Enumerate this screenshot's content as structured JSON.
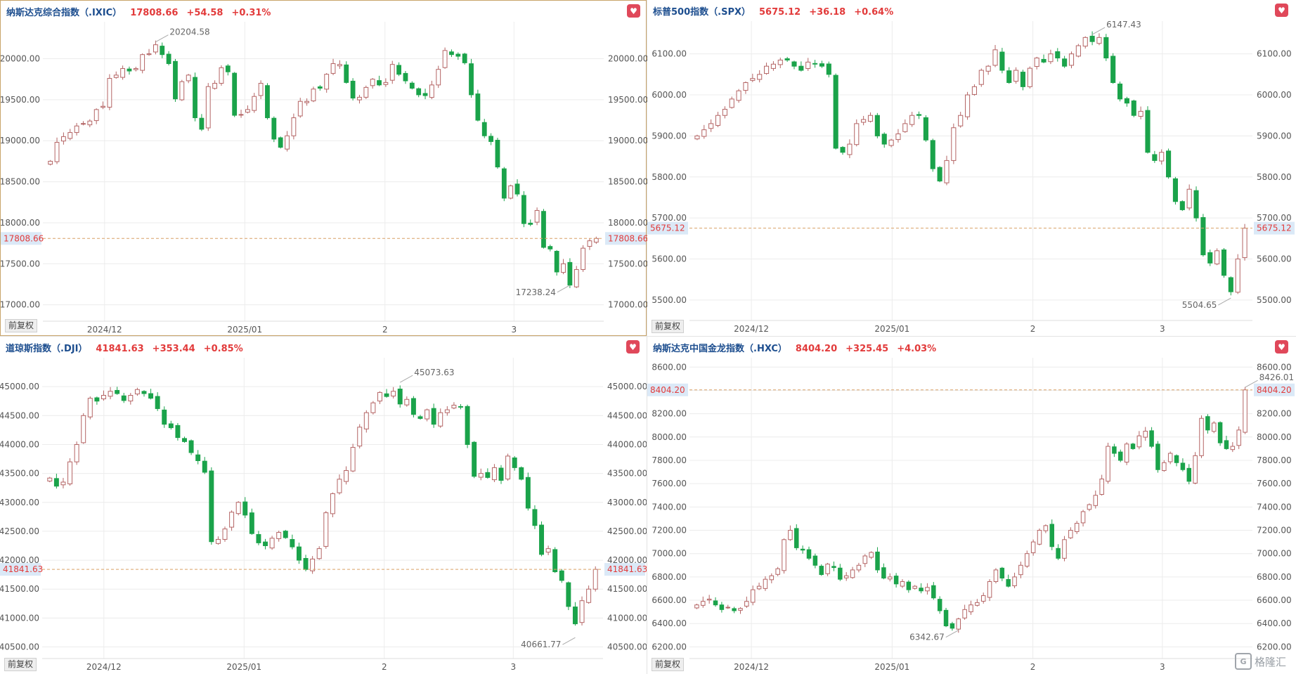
{
  "panels": [
    {
      "id": "ixic",
      "name": "纳斯达克综合指数（.IXIC）",
      "price": "17808.66",
      "change": "+54.58",
      "pct": "+0.31%",
      "left_axis": [
        "20000.00",
        "19500.00",
        "19000.00",
        "18500.00",
        "18000.00",
        "17500.00",
        "17000.00"
      ],
      "right_axis": [
        "20000.00",
        "19500.00",
        "19000.00",
        "18500.00",
        "18000.00",
        "17500.00",
        "17000.00"
      ],
      "x_labels": [
        "2024/12",
        "2025/01",
        "2",
        "3"
      ],
      "high_label": "20204.58",
      "low_label": "17238.24",
      "adj_label": "前复权"
    },
    {
      "id": "spx",
      "name": "标普500指数（.SPX）",
      "price": "5675.12",
      "change": "+36.18",
      "pct": "+0.64%",
      "left_axis": [
        "6100.00",
        "6000.00",
        "5900.00",
        "5800.00",
        "5700.00",
        "5600.00",
        "5500.00"
      ],
      "right_axis": [
        "6100.00",
        "6000.00",
        "5900.00",
        "5800.00",
        "5700.00",
        "5600.00",
        "5500.00"
      ],
      "x_labels": [
        "2024/12",
        "2025/01",
        "2",
        "3"
      ],
      "high_label": "6147.43",
      "low_label": "5504.65",
      "adj_label": "前复权"
    },
    {
      "id": "dji",
      "name": "道琼斯指数（.DJI）",
      "price": "41841.63",
      "change": "+353.44",
      "pct": "+0.85%",
      "left_axis": [
        "45000.00",
        "44500.00",
        "44000.00",
        "43500.00",
        "43000.00",
        "42500.00",
        "42000.00",
        "41500.00",
        "41000.00",
        "40500.00"
      ],
      "right_axis": [
        "45000.00",
        "44500.00",
        "44000.00",
        "43500.00",
        "43000.00",
        "42500.00",
        "42000.00",
        "41500.00",
        "41000.00",
        "40500.00"
      ],
      "x_labels": [
        "2024/12",
        "2025/01",
        "2",
        "3"
      ],
      "high_label": "45073.63",
      "low_label": "40661.77",
      "adj_label": "前复权"
    },
    {
      "id": "hxc",
      "name": "纳斯达克中国金龙指数（.HXC）",
      "price": "8404.20",
      "change": "+325.45",
      "pct": "+4.03%",
      "left_axis": [
        "8600.00",
        "8400.00",
        "8200.00",
        "8000.00",
        "7800.00",
        "7600.00",
        "7400.00",
        "7200.00",
        "7000.00",
        "6800.00",
        "6600.00",
        "6400.00",
        "6200.00"
      ],
      "right_axis": [
        "8600.00",
        "8400.00",
        "8200.00",
        "8000.00",
        "7800.00",
        "7600.00",
        "7400.00",
        "7200.00",
        "7000.00",
        "6800.00",
        "6600.00",
        "6400.00",
        "6200.00"
      ],
      "x_labels": [
        "2024/12",
        "2025/01",
        "2",
        "3"
      ],
      "high_label": "8426.01",
      "low_label": "6342.67",
      "adj_label": "前复权"
    }
  ],
  "brand": {
    "logo_text": "格隆汇",
    "logo_mark": "G"
  },
  "colors": {
    "up": "#b46464",
    "down": "#1aa34a",
    "accent": "#e23b3b",
    "title": "#1d4e8f",
    "price_line": "#d9a066"
  },
  "chart_data": [
    {
      "type": "candlestick",
      "title": "纳斯达克综合指数（.IXIC）",
      "x": [
        "2024/12",
        "2025/01",
        "2",
        "3"
      ],
      "ylim": [
        16800,
        20450
      ],
      "last": 17808.66,
      "high": 20204.58,
      "low": 17238.24,
      "closes": [
        18750,
        18980,
        19050,
        19100,
        19180,
        19210,
        19240,
        19380,
        19420,
        19760,
        19800,
        19880,
        19850,
        19880,
        20050,
        20060,
        20170,
        20050,
        19940,
        19510,
        19720,
        19800,
        19280,
        19140,
        19660,
        19700,
        19890,
        19840,
        19310,
        19320,
        19380,
        19540,
        19700,
        19280,
        19020,
        18920,
        19060,
        19280,
        19480,
        19480,
        19630,
        19640,
        19810,
        19940,
        19930,
        19710,
        19520,
        19530,
        19650,
        19750,
        19680,
        19710,
        19930,
        19810,
        19730,
        19640,
        19560,
        19550,
        19680,
        19870,
        20100,
        20050,
        20030,
        19950,
        19560,
        19250,
        19060,
        18990,
        18680,
        18300,
        18450,
        18350,
        17990,
        17980,
        18150,
        17700,
        17680,
        17400,
        17500,
        17240,
        17430,
        17690,
        17780,
        17808.66
      ]
    },
    {
      "type": "candlestick",
      "title": "标普500指数（.SPX）",
      "x": [
        "2024/12",
        "2025/01",
        "2",
        "3"
      ],
      "ylim": [
        5450,
        6180
      ],
      "last": 5675.12,
      "high": 6147.43,
      "low": 5504.65,
      "closes": [
        5900,
        5915,
        5930,
        5950,
        5965,
        5990,
        6010,
        6030,
        6040,
        6050,
        6070,
        6075,
        6085,
        6085,
        6070,
        6060,
        6080,
        6075,
        6070,
        6050,
        5870,
        5860,
        5880,
        5930,
        5940,
        5950,
        5900,
        5880,
        5890,
        5905,
        5930,
        5950,
        5950,
        5890,
        5820,
        5790,
        5840,
        5920,
        5950,
        6000,
        6020,
        6060,
        6070,
        6110,
        6060,
        6030,
        6060,
        6020,
        6065,
        6090,
        6080,
        6100,
        6090,
        6070,
        6100,
        6120,
        6140,
        6130,
        6140,
        6090,
        6030,
        5990,
        5980,
        5950,
        5960,
        5860,
        5840,
        5860,
        5800,
        5740,
        5720,
        5770,
        5700,
        5610,
        5590,
        5620,
        5560,
        5520,
        5600,
        5675.12
      ]
    },
    {
      "type": "candlestick",
      "title": "道琼斯指数（.DJI）",
      "x": [
        "2024/12",
        "2025/01",
        "2",
        "3"
      ],
      "ylim": [
        40300,
        45500
      ],
      "last": 41841.63,
      "high": 45073.63,
      "low": 40661.77,
      "closes": [
        43420,
        43280,
        43350,
        43700,
        44000,
        44500,
        44800,
        44750,
        44850,
        44920,
        44880,
        44760,
        44850,
        44950,
        44880,
        44800,
        44620,
        44350,
        44290,
        44120,
        44050,
        43860,
        43720,
        43520,
        42320,
        42360,
        42540,
        42830,
        43000,
        42780,
        42460,
        42300,
        42250,
        42380,
        42480,
        42390,
        42230,
        42000,
        41840,
        42020,
        42200,
        42820,
        43150,
        43400,
        43550,
        43950,
        44300,
        44550,
        44720,
        44900,
        44830,
        44920,
        44700,
        44780,
        44520,
        44450,
        44600,
        44350,
        44550,
        44600,
        44680,
        44650,
        44000,
        43450,
        43500,
        43430,
        43600,
        43380,
        43800,
        43600,
        43400,
        42900,
        42600,
        42100,
        42200,
        41800,
        41650,
        41200,
        40900,
        41300,
        41500,
        41841.63
      ]
    },
    {
      "type": "candlestick",
      "title": "纳斯达克中国金龙指数（.HXC）",
      "x": [
        "2024/12",
        "2025/01",
        "2",
        "3"
      ],
      "ylim": [
        6100,
        8680
      ],
      "last": 8404.2,
      "high": 8426.01,
      "low": 6342.67,
      "closes": [
        6560,
        6590,
        6610,
        6560,
        6520,
        6540,
        6510,
        6530,
        6590,
        6690,
        6720,
        6780,
        6810,
        6870,
        7120,
        7200,
        7050,
        7030,
        6960,
        6900,
        6820,
        6910,
        6880,
        6780,
        6810,
        6860,
        6900,
        6980,
        7010,
        6860,
        6790,
        6800,
        6740,
        6760,
        6690,
        6720,
        6680,
        6710,
        6620,
        6510,
        6380,
        6360,
        6440,
        6520,
        6560,
        6580,
        6640,
        6760,
        6860,
        6790,
        6720,
        6800,
        6900,
        7000,
        7100,
        7200,
        7240,
        7060,
        6960,
        7120,
        7200,
        7260,
        7360,
        7420,
        7500,
        7640,
        7920,
        7860,
        7800,
        7940,
        7900,
        8010,
        8050,
        7920,
        7720,
        7780,
        7860,
        7780,
        7720,
        7620,
        7840,
        8160,
        8060,
        8120,
        7950,
        7900,
        7920,
        8060,
        8404.2
      ]
    }
  ]
}
